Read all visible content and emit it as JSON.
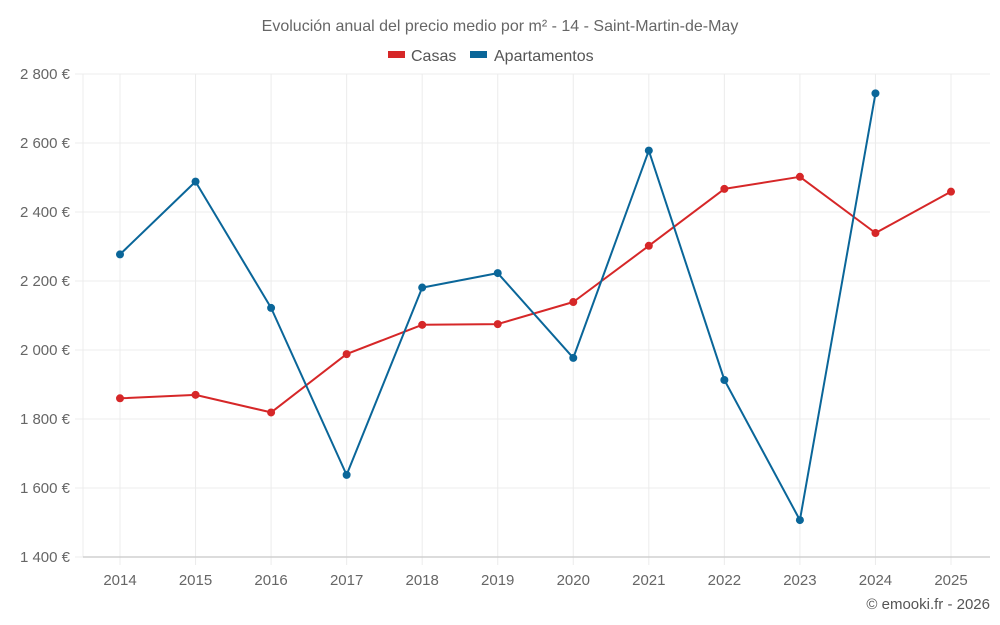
{
  "chart_data": {
    "type": "line",
    "title": "Evolución anual del precio medio por m² - 14 - Saint-Martin-de-May",
    "xlabel": "",
    "ylabel": "",
    "x": [
      "2014",
      "2015",
      "2016",
      "2017",
      "2018",
      "2019",
      "2020",
      "2021",
      "2022",
      "2023",
      "2024",
      "2025"
    ],
    "ylim": [
      1400,
      2800
    ],
    "yticks": [
      1400,
      1600,
      1800,
      2000,
      2200,
      2400,
      2600,
      2800
    ],
    "ytick_labels": [
      "1 400 €",
      "1 600 €",
      "1 800 €",
      "2 000 €",
      "2 200 €",
      "2 400 €",
      "2 600 €",
      "2 800 €"
    ],
    "grid": true,
    "legend_position": "top-center",
    "series": [
      {
        "name": "Casas",
        "color": "#d62728",
        "values": [
          1860,
          1870,
          1819,
          1988,
          2073,
          2075,
          2139,
          2302,
          2467,
          2502,
          2339,
          2459
        ]
      },
      {
        "name": "Apartamentos",
        "color": "#0a6699",
        "values": [
          2277,
          2488,
          2122,
          1638,
          2181,
          2223,
          1977,
          2578,
          1913,
          1507,
          2744,
          null
        ]
      }
    ],
    "credit": "© emooki.fr - 2026"
  }
}
